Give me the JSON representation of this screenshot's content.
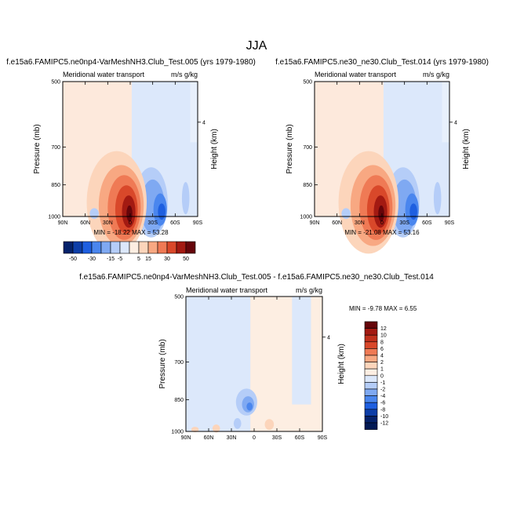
{
  "figure": {
    "title": "JJA"
  },
  "colors": {
    "levels12": [
      "#05226b",
      "#0d3ea8",
      "#1e5fe0",
      "#4a86ee",
      "#7fa9f2",
      "#b5cdf8",
      "#dce8fb",
      "#fdeee2",
      "#fcd5bb",
      "#f8a882",
      "#ef7a55",
      "#d9482a",
      "#a31a12",
      "#66050a"
    ],
    "background_warm": "#fde9dc",
    "background_cool": "#dce8fb"
  },
  "chart_data": [
    {
      "type": "contour",
      "id": "panel1",
      "title": "f.e15a6.FAMIPC5.ne0np4-VarMeshNH3.Club_Test.005 (yrs 1979-1980)",
      "left_label": "Meridional water transport",
      "right_label": "m/s g/kg",
      "ylabel": "Pressure (mb)",
      "y2label": "Height (km)",
      "y_ticks": [
        "500",
        "700",
        "850",
        "1000"
      ],
      "y2_ticks": [
        "4"
      ],
      "x_ticks": [
        "90N",
        "60N",
        "30N",
        "0",
        "30S",
        "60S",
        "90S"
      ],
      "xlim": [
        90,
        -90
      ],
      "ylim": [
        1000,
        500
      ],
      "min": -18.22,
      "max": 53.28,
      "minmax_text": "MIN = -18.22   MAX =  53.28",
      "features": [
        {
          "kind": "positive-core",
          "lat": 2,
          "pressure": 960,
          "peak": 53.28
        },
        {
          "kind": "negative-core",
          "lat": -40,
          "pressure": 960,
          "peak": -18.22
        }
      ]
    },
    {
      "type": "contour",
      "id": "panel2",
      "title": "f.e15a6.FAMIPC5.ne30_ne30.Club_Test.014 (yrs 1979-1980)",
      "left_label": "Meridional water transport",
      "right_label": "m/s g/kg",
      "ylabel": "Pressure (mb)",
      "y2label": "Height (km)",
      "y_ticks": [
        "500",
        "700",
        "850",
        "1000"
      ],
      "y2_ticks": [
        "4"
      ],
      "x_ticks": [
        "90N",
        "60N",
        "30N",
        "0",
        "30S",
        "60S",
        "90S"
      ],
      "xlim": [
        90,
        -90
      ],
      "ylim": [
        1000,
        500
      ],
      "min": -21.08,
      "max": 53.16,
      "minmax_text": "MIN = -21.08   MAX =  53.16",
      "features": [
        {
          "kind": "positive-core",
          "lat": 2,
          "pressure": 960,
          "peak": 53.16
        },
        {
          "kind": "negative-core",
          "lat": -40,
          "pressure": 960,
          "peak": -21.08
        }
      ]
    },
    {
      "type": "contour",
      "id": "panel3",
      "title": "f.e15a6.FAMIPC5.ne0np4-VarMeshNH3.Club_Test.005 - f.e15a6.FAMIPC5.ne30_ne30.Club_Test.014",
      "left_label": "Meridional water transport",
      "right_label": "m/s g/kg",
      "ylabel": "Pressure (mb)",
      "y2label": "Height (km)",
      "y_ticks": [
        "500",
        "700",
        "850",
        "1000"
      ],
      "y2_ticks": [
        "4"
      ],
      "x_ticks": [
        "90N",
        "60N",
        "30N",
        "0",
        "30S",
        "60S",
        "90S"
      ],
      "xlim": [
        90,
        -90
      ],
      "ylim": [
        1000,
        500
      ],
      "min": -9.78,
      "max": 6.55,
      "minmax_text": "MIN = -9.78   MAX =  6.55"
    }
  ],
  "colorbars": {
    "main": {
      "orientation": "horizontal",
      "labels": [
        "-50",
        "-30",
        "-15",
        "-5",
        "5",
        "15",
        "30",
        "50"
      ]
    },
    "diff": {
      "orientation": "vertical",
      "labels": [
        "12",
        "10",
        "8",
        "6",
        "4",
        "2",
        "1",
        "0",
        "-1",
        "-2",
        "-4",
        "-6",
        "-8",
        "-10",
        "-12"
      ]
    }
  }
}
